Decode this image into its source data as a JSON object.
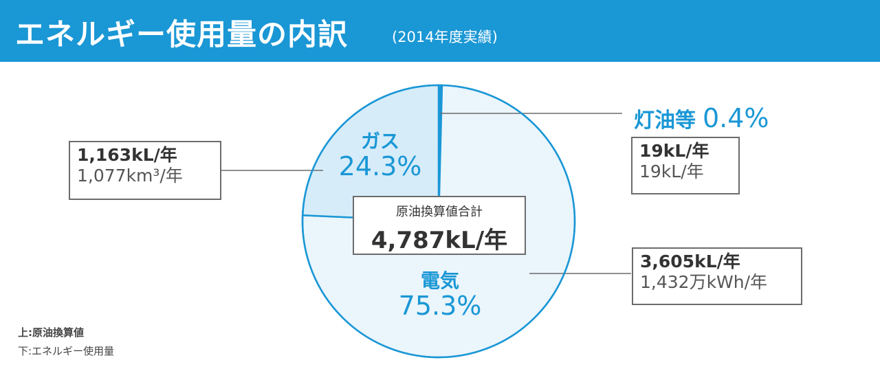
{
  "header": {
    "title": "エネルギー使用量の内訳",
    "subtitle": "(2014年度実績)"
  },
  "colors": {
    "header_bg": "#1a97d5",
    "accent": "#1a97d5",
    "slice_gas": "#d6ecf9",
    "slice_electric": "#eaf5fc",
    "slice_kerosene": "#1a97d5",
    "outline": "#1a97d5",
    "leader": "#6b6b6b"
  },
  "chart_data": {
    "type": "pie",
    "title": "エネルギー使用量の内訳",
    "categories": [
      "灯油等",
      "電気",
      "ガス"
    ],
    "values": [
      0.4,
      75.3,
      24.3
    ],
    "unit": "%",
    "total": {
      "label": "原油換算値合計",
      "value": "4,787kL/年"
    },
    "slices": [
      {
        "name": "灯油等",
        "pct": 0.4,
        "pct_text": "0.4%",
        "crude_equivalent": "19kL/年",
        "usage": "19kL/年"
      },
      {
        "name": "電気",
        "pct": 75.3,
        "pct_text": "75.3%",
        "crude_equivalent": "3,605kL/年",
        "usage": "1,432万kWh/年"
      },
      {
        "name": "ガス",
        "pct": 24.3,
        "pct_text": "24.3%",
        "crude_equivalent": "1,163kL/年",
        "usage": "1,077km³/年"
      }
    ]
  },
  "legend_note": {
    "upper": "上:原油換算値",
    "lower": "下:エネルギー使用量"
  }
}
